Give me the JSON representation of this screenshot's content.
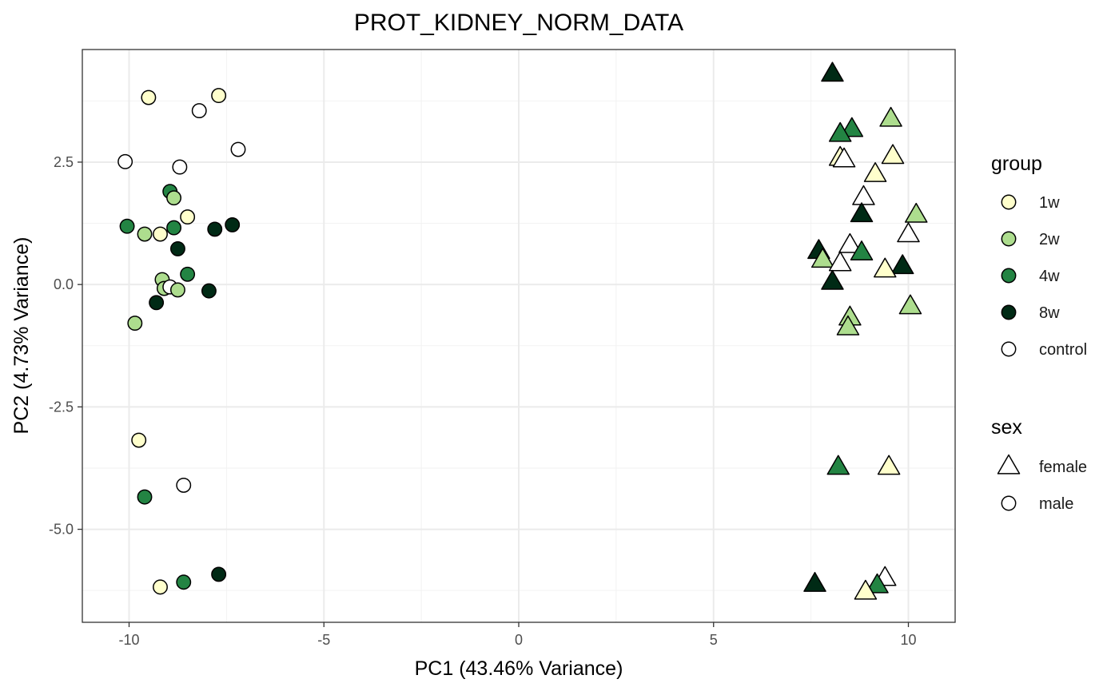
{
  "chart_data": {
    "type": "scatter",
    "title": "PROT_KIDNEY_NORM_DATA",
    "xlabel": "PC1 (43.46% Variance)",
    "ylabel": "PC2 (4.73% Variance)",
    "xlim": [
      -11.2,
      11.2
    ],
    "ylim": [
      -6.9,
      4.8
    ],
    "x_ticks": [
      -10,
      -5,
      0,
      5,
      10
    ],
    "x_tick_labels": [
      "-10",
      "-5",
      "0",
      "5",
      "10"
    ],
    "y_ticks": [
      -5,
      -2.5,
      0,
      2.5
    ],
    "y_tick_labels": [
      "-5.0",
      "-2.5",
      "0.0",
      "2.5"
    ],
    "grid": true,
    "legend_placement": "right",
    "colors": {
      "1w": "#ffffcc",
      "2w": "#addd8e",
      "4w": "#238443",
      "8w": "#002a15",
      "control": "#ffffff"
    },
    "legends": [
      {
        "title": "group",
        "entries": [
          "1w",
          "2w",
          "4w",
          "8w",
          "control"
        ]
      },
      {
        "title": "sex",
        "entries": [
          "female",
          "male"
        ]
      }
    ],
    "points": [
      {
        "x": -9.5,
        "y": 3.82,
        "group": "1w",
        "sex": "male"
      },
      {
        "x": -7.7,
        "y": 3.86,
        "group": "1w",
        "sex": "male"
      },
      {
        "x": -8.2,
        "y": 3.55,
        "group": "control",
        "sex": "male"
      },
      {
        "x": -7.2,
        "y": 2.76,
        "group": "control",
        "sex": "male"
      },
      {
        "x": -10.1,
        "y": 2.51,
        "group": "control",
        "sex": "male"
      },
      {
        "x": -8.7,
        "y": 2.4,
        "group": "control",
        "sex": "male"
      },
      {
        "x": -8.95,
        "y": 1.9,
        "group": "4w",
        "sex": "male"
      },
      {
        "x": -8.85,
        "y": 1.77,
        "group": "2w",
        "sex": "male"
      },
      {
        "x": -8.5,
        "y": 1.38,
        "group": "1w",
        "sex": "male"
      },
      {
        "x": -10.05,
        "y": 1.19,
        "group": "4w",
        "sex": "male"
      },
      {
        "x": -8.85,
        "y": 1.16,
        "group": "4w",
        "sex": "male"
      },
      {
        "x": -7.8,
        "y": 1.13,
        "group": "8w",
        "sex": "male"
      },
      {
        "x": -7.35,
        "y": 1.22,
        "group": "8w",
        "sex": "male"
      },
      {
        "x": -9.6,
        "y": 1.03,
        "group": "2w",
        "sex": "male"
      },
      {
        "x": -9.2,
        "y": 1.03,
        "group": "1w",
        "sex": "male"
      },
      {
        "x": -8.75,
        "y": 0.73,
        "group": "8w",
        "sex": "male"
      },
      {
        "x": -8.5,
        "y": 0.21,
        "group": "4w",
        "sex": "male"
      },
      {
        "x": -9.15,
        "y": 0.1,
        "group": "2w",
        "sex": "male"
      },
      {
        "x": -9.1,
        "y": -0.08,
        "group": "2w",
        "sex": "male"
      },
      {
        "x": -8.95,
        "y": -0.05,
        "group": "control",
        "sex": "male"
      },
      {
        "x": -8.75,
        "y": -0.11,
        "group": "2w",
        "sex": "male"
      },
      {
        "x": -7.95,
        "y": -0.13,
        "group": "8w",
        "sex": "male"
      },
      {
        "x": -9.3,
        "y": -0.37,
        "group": "8w",
        "sex": "male"
      },
      {
        "x": -9.85,
        "y": -0.79,
        "group": "2w",
        "sex": "male"
      },
      {
        "x": -9.75,
        "y": -3.18,
        "group": "1w",
        "sex": "male"
      },
      {
        "x": -8.6,
        "y": -4.1,
        "group": "control",
        "sex": "male"
      },
      {
        "x": -9.6,
        "y": -4.34,
        "group": "4w",
        "sex": "male"
      },
      {
        "x": -9.2,
        "y": -6.18,
        "group": "1w",
        "sex": "male"
      },
      {
        "x": -8.6,
        "y": -6.08,
        "group": "4w",
        "sex": "male"
      },
      {
        "x": -7.7,
        "y": -5.92,
        "group": "8w",
        "sex": "male"
      },
      {
        "x": 8.05,
        "y": 4.3,
        "group": "8w",
        "sex": "female"
      },
      {
        "x": 9.55,
        "y": 3.38,
        "group": "2w",
        "sex": "female"
      },
      {
        "x": 8.55,
        "y": 3.17,
        "group": "4w",
        "sex": "female"
      },
      {
        "x": 8.25,
        "y": 3.07,
        "group": "4w",
        "sex": "female"
      },
      {
        "x": 9.6,
        "y": 2.62,
        "group": "1w",
        "sex": "female"
      },
      {
        "x": 8.25,
        "y": 2.58,
        "group": "1w",
        "sex": "female"
      },
      {
        "x": 8.35,
        "y": 2.55,
        "group": "control",
        "sex": "female"
      },
      {
        "x": 9.15,
        "y": 2.25,
        "group": "1w",
        "sex": "female"
      },
      {
        "x": 8.85,
        "y": 1.78,
        "group": "control",
        "sex": "female"
      },
      {
        "x": 8.8,
        "y": 1.43,
        "group": "8w",
        "sex": "female"
      },
      {
        "x": 10.2,
        "y": 1.42,
        "group": "2w",
        "sex": "female"
      },
      {
        "x": 10.0,
        "y": 1.02,
        "group": "control",
        "sex": "female"
      },
      {
        "x": 8.5,
        "y": 0.8,
        "group": "control",
        "sex": "female"
      },
      {
        "x": 7.7,
        "y": 0.68,
        "group": "8w",
        "sex": "female"
      },
      {
        "x": 8.8,
        "y": 0.65,
        "group": "4w",
        "sex": "female"
      },
      {
        "x": 7.8,
        "y": 0.5,
        "group": "2w",
        "sex": "female"
      },
      {
        "x": 8.25,
        "y": 0.43,
        "group": "control",
        "sex": "female"
      },
      {
        "x": 9.85,
        "y": 0.37,
        "group": "8w",
        "sex": "female"
      },
      {
        "x": 9.4,
        "y": 0.3,
        "group": "1w",
        "sex": "female"
      },
      {
        "x": 8.05,
        "y": 0.05,
        "group": "8w",
        "sex": "female"
      },
      {
        "x": 10.05,
        "y": -0.45,
        "group": "2w",
        "sex": "female"
      },
      {
        "x": 8.5,
        "y": -0.68,
        "group": "2w",
        "sex": "female"
      },
      {
        "x": 8.45,
        "y": -0.88,
        "group": "2w",
        "sex": "female"
      },
      {
        "x": 8.2,
        "y": -3.73,
        "group": "4w",
        "sex": "female"
      },
      {
        "x": 9.5,
        "y": -3.73,
        "group": "1w",
        "sex": "female"
      },
      {
        "x": 7.6,
        "y": -6.12,
        "group": "8w",
        "sex": "female"
      },
      {
        "x": 9.4,
        "y": -6.0,
        "group": "control",
        "sex": "female"
      },
      {
        "x": 9.2,
        "y": -6.15,
        "group": "4w",
        "sex": "female"
      },
      {
        "x": 8.9,
        "y": -6.28,
        "group": "1w",
        "sex": "female"
      }
    ]
  }
}
